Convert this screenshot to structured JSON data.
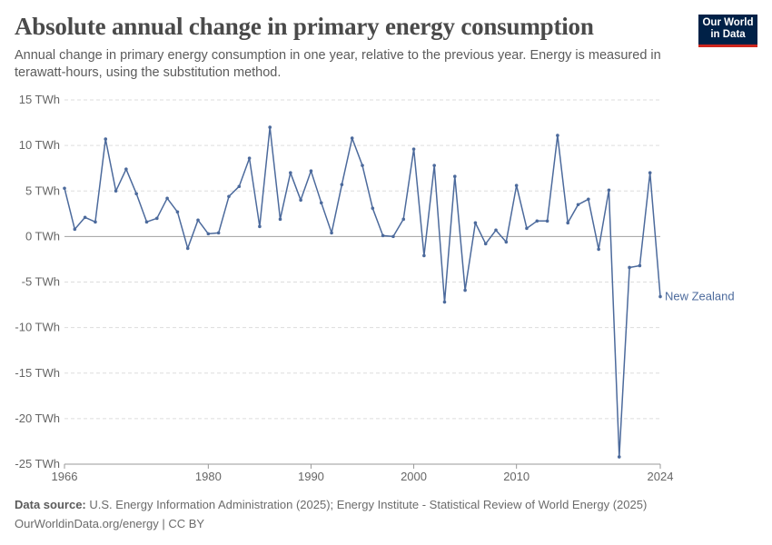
{
  "header": {
    "title": "Absolute annual change in primary energy consumption",
    "subtitle": "Annual change in primary energy consumption in one year, relative to the previous year. Energy is measured in terawatt-hours, using the substitution method.",
    "logo_line1": "Our World",
    "logo_line2": "in Data"
  },
  "footer": {
    "source_label": "Data source:",
    "source_text": "U.S. Energy Information Administration (2025); Energy Institute - Statistical Review of World Energy (2025)",
    "url_license": "OurWorldinData.org/energy | CC BY"
  },
  "colors": {
    "series": "#4c6a9c",
    "grid": "#dddddd",
    "zero_line": "#a1a1a1",
    "logo_bg": "#002147",
    "logo_accent": "#ce261e"
  },
  "chart_data": {
    "type": "line",
    "xlim": [
      1966,
      2024
    ],
    "ylim": [
      -25,
      15
    ],
    "y_ticks": [
      15,
      10,
      5,
      0,
      -5,
      -10,
      -15,
      -20,
      -25
    ],
    "y_tick_labels": [
      "15 TWh",
      "10 TWh",
      "5 TWh",
      "0 TWh",
      "-5 TWh",
      "-10 TWh",
      "-15 TWh",
      "-20 TWh",
      "-25 TWh"
    ],
    "x_ticks": [
      1966,
      1980,
      1990,
      2000,
      2010,
      2024
    ],
    "x_tick_labels": [
      "1966",
      "1980",
      "1990",
      "2000",
      "2010",
      "2024"
    ],
    "grid": "horizontal dashed",
    "legend": "inline label at end of line",
    "series": [
      {
        "name": "New Zealand",
        "x": [
          1966,
          1967,
          1968,
          1969,
          1970,
          1971,
          1972,
          1973,
          1974,
          1975,
          1976,
          1977,
          1978,
          1979,
          1980,
          1981,
          1982,
          1983,
          1984,
          1985,
          1986,
          1987,
          1988,
          1989,
          1990,
          1991,
          1992,
          1993,
          1994,
          1995,
          1996,
          1997,
          1998,
          1999,
          2000,
          2001,
          2002,
          2003,
          2004,
          2005,
          2006,
          2007,
          2008,
          2009,
          2010,
          2011,
          2012,
          2013,
          2014,
          2015,
          2016,
          2017,
          2018,
          2019,
          2020,
          2021,
          2022,
          2023,
          2024
        ],
        "values": [
          5.3,
          0.8,
          2.1,
          1.6,
          10.7,
          5.0,
          7.4,
          4.7,
          1.6,
          2.0,
          4.2,
          2.7,
          -1.3,
          1.8,
          0.3,
          0.4,
          4.4,
          5.5,
          8.6,
          1.1,
          12.0,
          1.9,
          7.0,
          4.0,
          7.2,
          3.7,
          0.4,
          5.7,
          10.8,
          7.8,
          3.1,
          0.1,
          0.0,
          1.9,
          9.6,
          -2.1,
          7.8,
          -7.2,
          6.6,
          -5.9,
          1.5,
          -0.8,
          0.7,
          -0.6,
          5.6,
          0.9,
          1.7,
          1.7,
          11.1,
          1.5,
          3.5,
          4.1,
          -1.4,
          5.1,
          -24.2,
          -3.4,
          -3.2,
          7.0,
          -6.6
        ]
      }
    ]
  }
}
